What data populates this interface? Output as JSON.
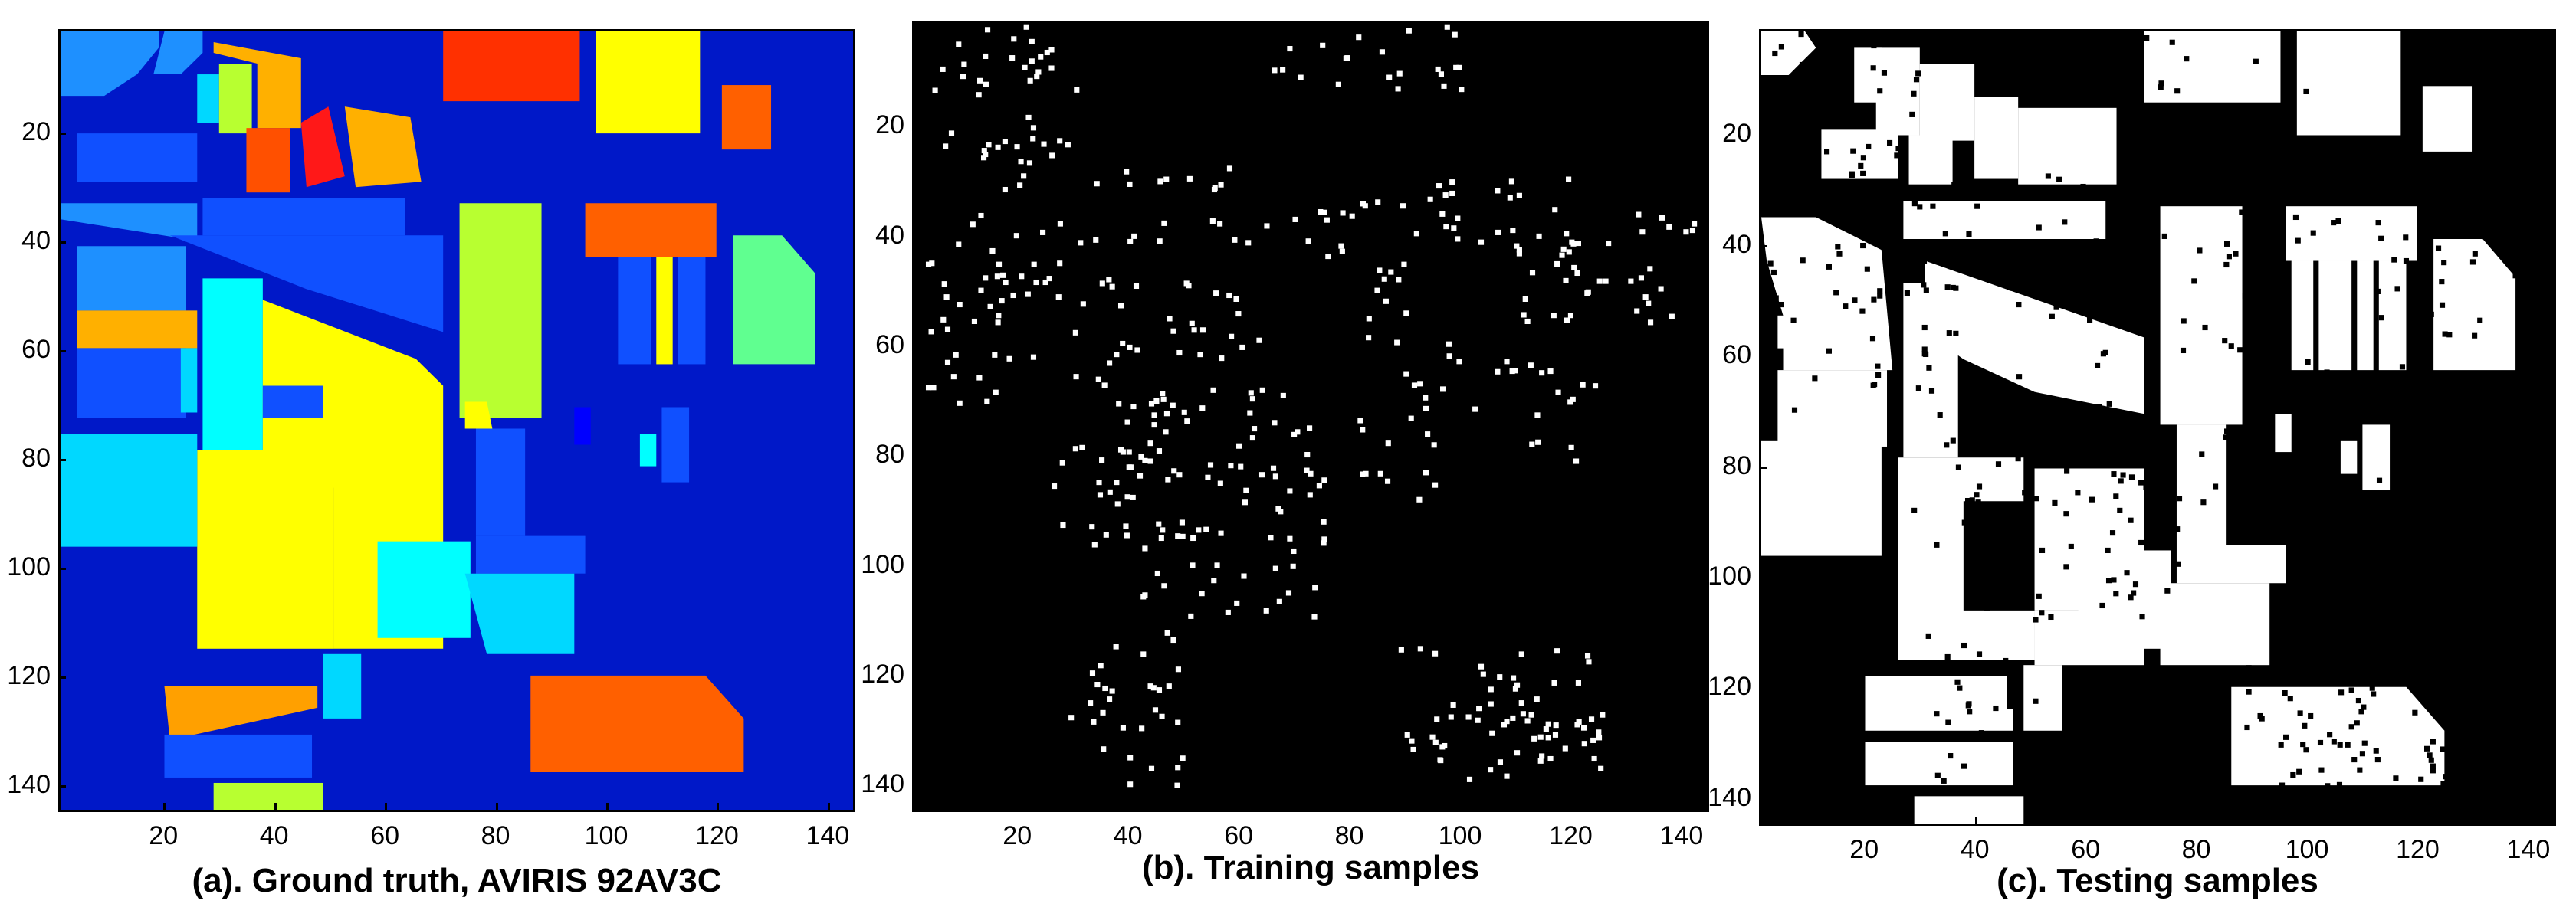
{
  "panels": [
    {
      "id": "a",
      "caption": "(a). Ground truth, AVIRIS 92AV3C"
    },
    {
      "id": "b",
      "caption": "(b). Training samples"
    },
    {
      "id": "c",
      "caption": "(c). Testing samples"
    }
  ],
  "axes": {
    "y_ticks": [
      "20",
      "40",
      "60",
      "80",
      "100",
      "120",
      "140"
    ],
    "x_ticks": [
      "20",
      "40",
      "60",
      "80",
      "100",
      "120",
      "140"
    ],
    "y_values": [
      20,
      40,
      60,
      80,
      100,
      120,
      140
    ],
    "x_values": [
      20,
      40,
      60,
      80,
      100,
      120,
      140
    ],
    "extent": [
      1,
      145
    ]
  },
  "colors": {
    "background_blue": "#0018c8",
    "sample_white": "#ffffff",
    "sample_black": "#000000"
  }
}
